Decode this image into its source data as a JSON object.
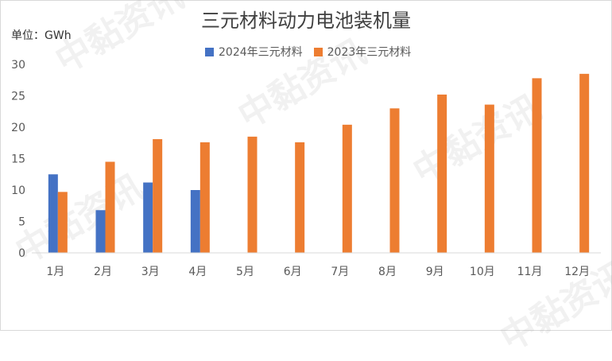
{
  "chart_data": {
    "type": "bar",
    "title": "三元材料动力电池装机量",
    "unit_label": "单位：GWh",
    "categories": [
      "1月",
      "2月",
      "3月",
      "4月",
      "5月",
      "6月",
      "7月",
      "8月",
      "9月",
      "10月",
      "11月",
      "12月"
    ],
    "series": [
      {
        "name": "2024年三元材料",
        "color": "#4472c4",
        "values": [
          12.5,
          6.8,
          11.2,
          10.0,
          null,
          null,
          null,
          null,
          null,
          null,
          null,
          null
        ]
      },
      {
        "name": "2023年三元材料",
        "color": "#ed7d31",
        "values": [
          9.7,
          14.5,
          18.1,
          17.6,
          18.5,
          17.6,
          20.4,
          23.0,
          25.2,
          23.6,
          27.8,
          28.5
        ]
      }
    ],
    "ylim": [
      0,
      30
    ],
    "yticks": [
      0,
      5,
      10,
      15,
      20,
      25,
      30
    ],
    "legend": "top-center",
    "grid": false
  },
  "watermark": "中黏资讯"
}
